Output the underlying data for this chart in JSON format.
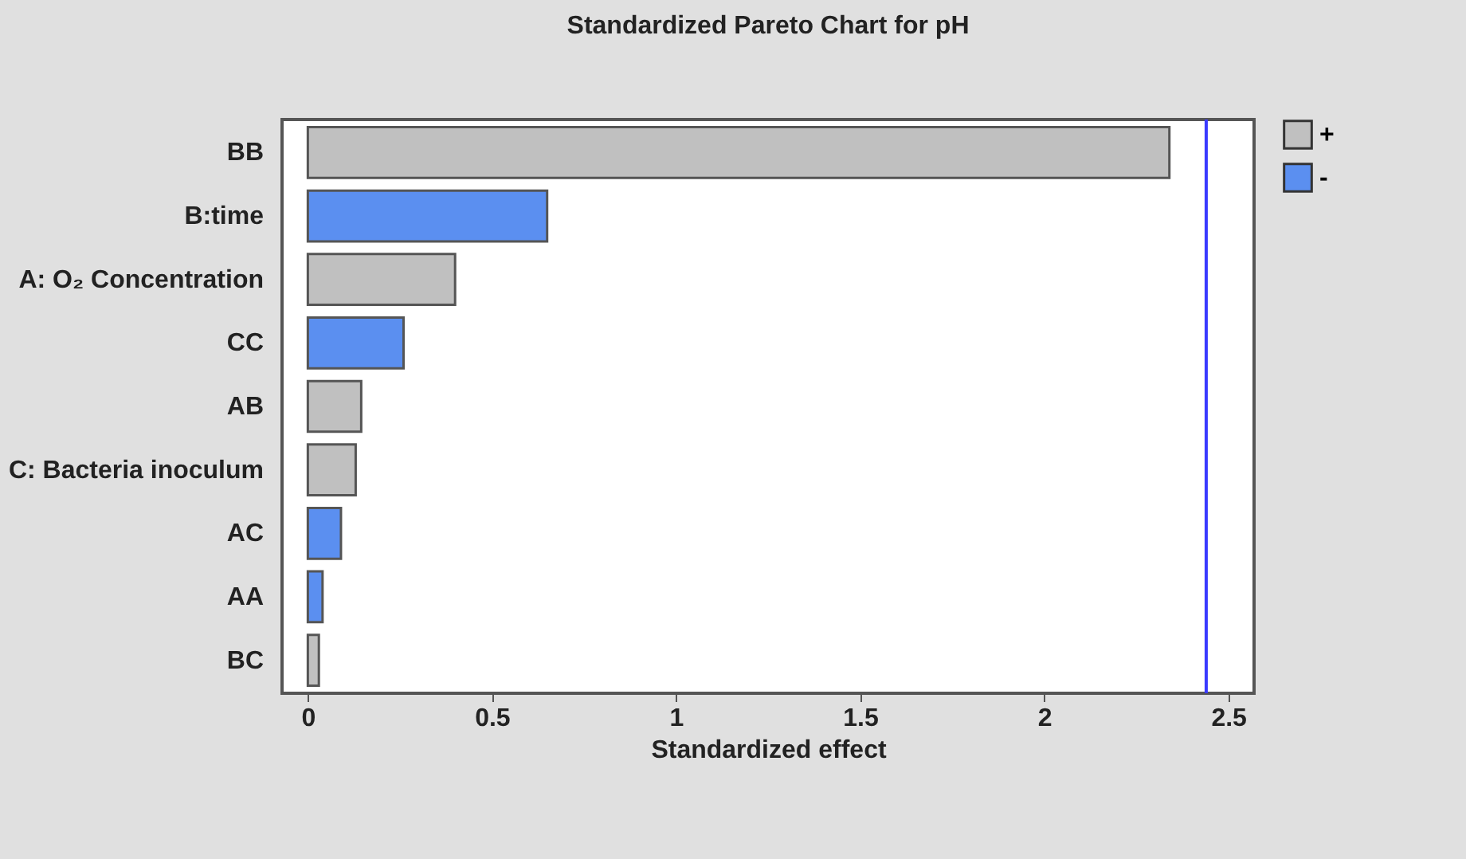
{
  "chart_data": {
    "type": "bar",
    "title": "Standardized Pareto Chart for pH",
    "xlabel": "Standardized effect",
    "orientation": "horizontal",
    "categories": [
      "BB",
      "B:time",
      "A: O₂ Concentration",
      "CC",
      "AB",
      "C: Bacteria inoculum",
      "AC",
      "AA",
      "BC"
    ],
    "series": [
      {
        "name": "+",
        "color": "#c0c0c0",
        "values": [
          2.34,
          null,
          0.4,
          null,
          0.145,
          0.13,
          null,
          null,
          0.03
        ]
      },
      {
        "name": "-",
        "color": "#5b8ff0",
        "values": [
          null,
          0.65,
          null,
          0.26,
          null,
          null,
          0.09,
          0.04,
          null
        ]
      }
    ],
    "xlim": [
      -0.07,
      2.57
    ],
    "xticks": [
      0,
      0.5,
      1,
      1.5,
      2,
      2.5
    ],
    "ref_lines": [
      {
        "axis": "x",
        "value": 2.44,
        "color": "#3a3aff"
      }
    ],
    "legend": "right",
    "grid": false
  }
}
